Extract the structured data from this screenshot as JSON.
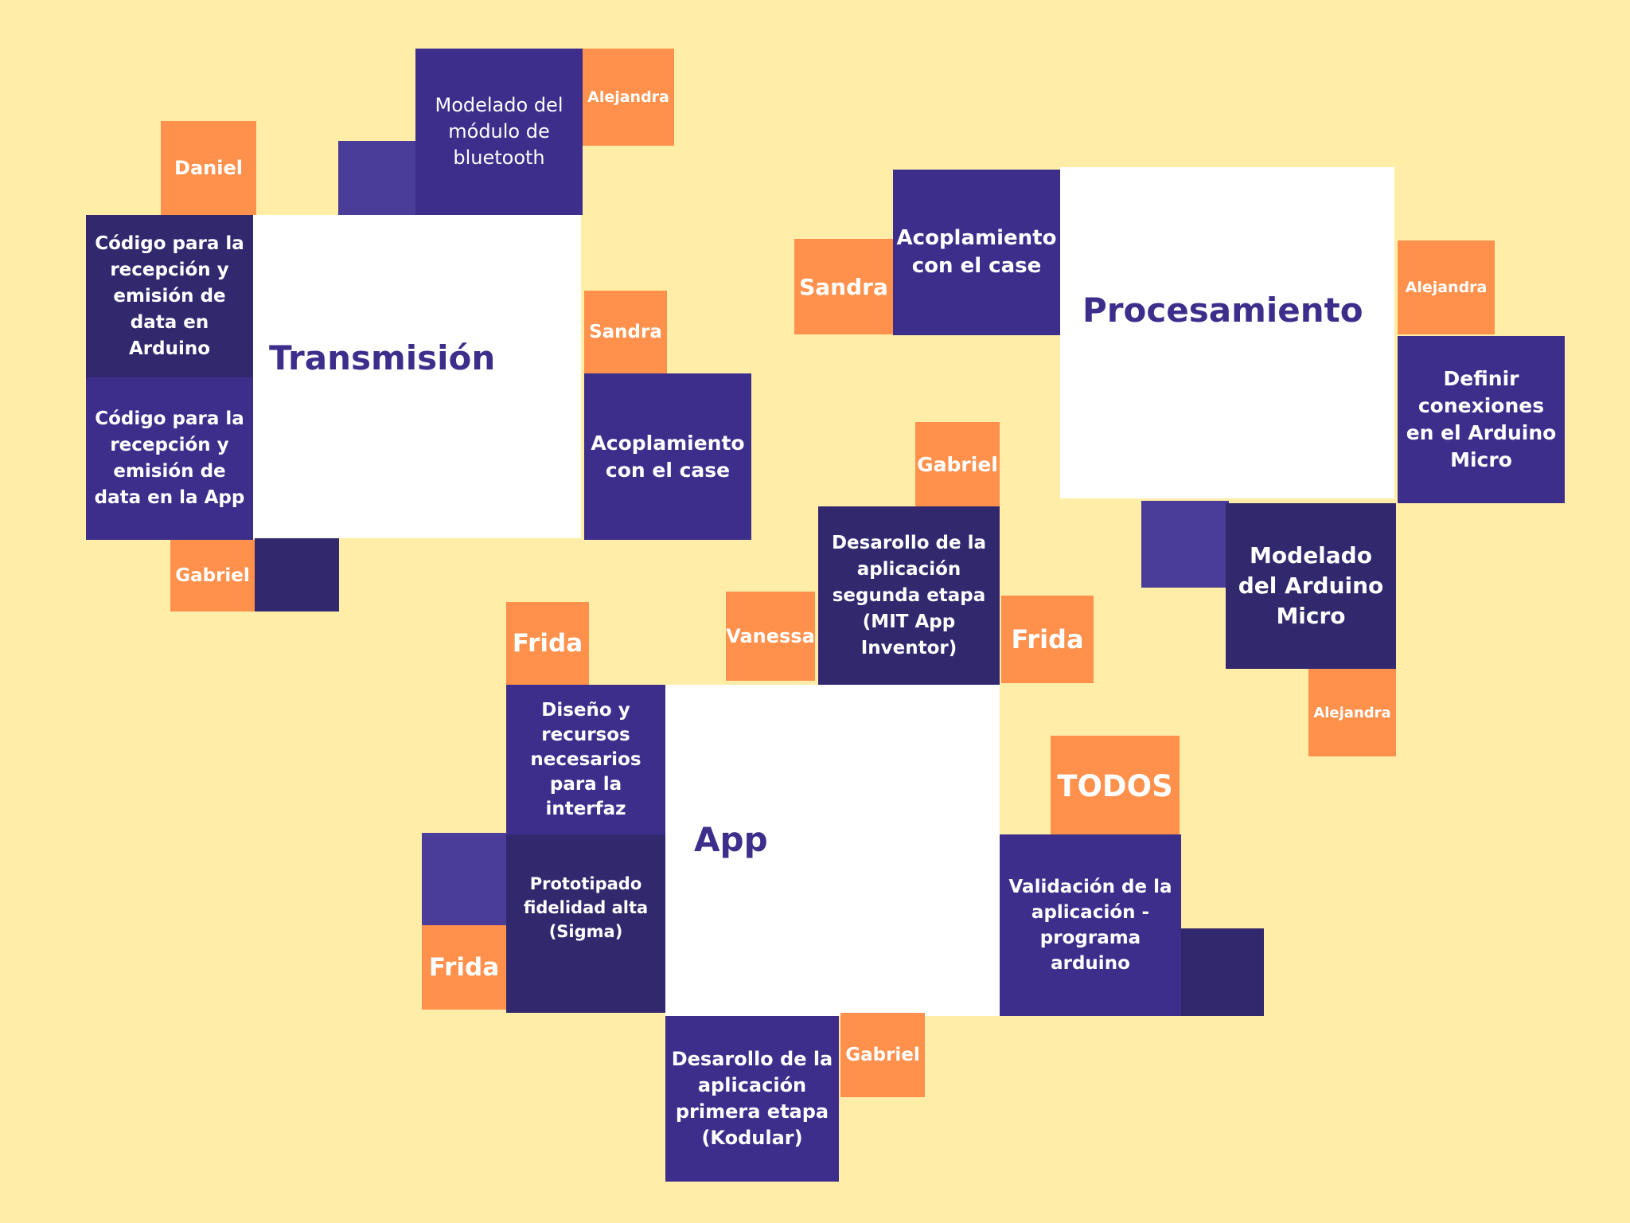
{
  "colors": {
    "background": "#FFEDA8",
    "hub": "#FFFFFF",
    "task": "#3D2E8C",
    "task_dark": "#32286E",
    "person": "#FF914D",
    "title": "#3D2E8C"
  },
  "transmision": {
    "title": "Transmisión",
    "tasks": {
      "modelado_bluetooth": "Modelado del módulo de bluetooth",
      "codigo_arduino": "Código para la recepción y emisión de data en Arduino",
      "codigo_app": "Código para la recepción y emisión de data en la App",
      "acoplamiento": "Acoplamiento con el case"
    },
    "people": {
      "alejandra": "Alejandra",
      "daniel": "Daniel",
      "sandra": "Sandra",
      "gabriel": "Gabriel"
    }
  },
  "procesamiento": {
    "title": "Procesamiento",
    "tasks": {
      "acoplamiento": "Acoplamiento con el case",
      "definir_conexiones": "Definir conexiones en el Arduino Micro",
      "modelado_arduino": "Modelado del Arduino Micro"
    },
    "people": {
      "sandra": "Sandra",
      "alejandra_1": "Alejandra",
      "alejandra_2": "Alejandra"
    }
  },
  "app": {
    "title": "App",
    "tasks": {
      "segunda_etapa": "Desarollo de la aplicación segunda etapa (MIT App Inventor)",
      "diseno": "Diseño y recursos necesarios para la interfaz",
      "prototipado": "Prototipado fidelidad alta (Sigma)",
      "validacion": "Validación de la aplicación - programa arduino",
      "primera_etapa": "Desarollo de la aplicación primera etapa (Kodular)"
    },
    "people": {
      "gabriel_1": "Gabriel",
      "vanessa": "Vanessa",
      "frida_1": "Frida",
      "frida_2": "Frida",
      "frida_3": "Frida",
      "todos": "TODOS",
      "gabriel_2": "Gabriel"
    }
  }
}
